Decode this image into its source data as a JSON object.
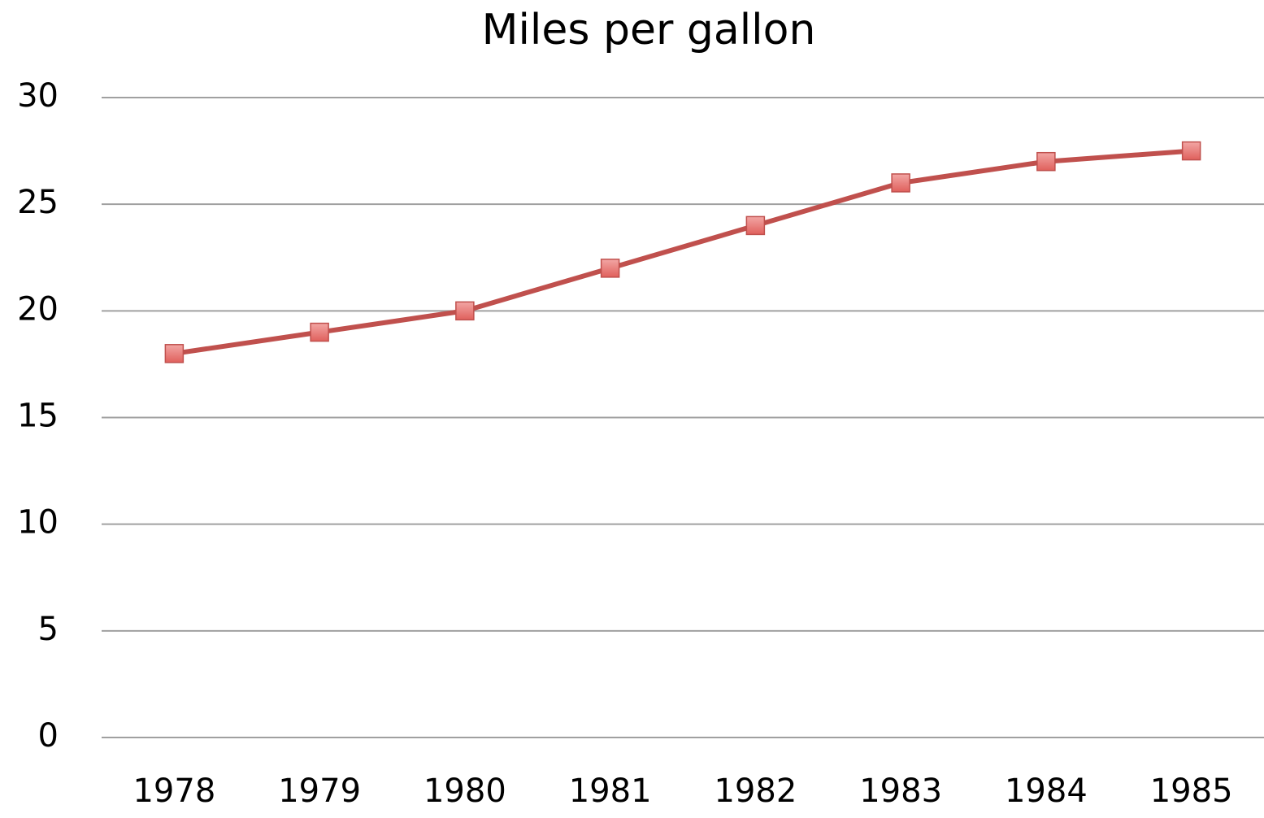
{
  "chart_data": {
    "type": "line",
    "title": "Miles per gallon",
    "categories": [
      "1978",
      "1979",
      "1980",
      "1981",
      "1982",
      "1983",
      "1984",
      "1985"
    ],
    "series": [
      {
        "name": "Miles per gallon",
        "color": "#c0504d",
        "values": [
          18,
          19,
          20,
          22,
          24,
          26,
          27,
          27.5
        ]
      }
    ],
    "ylim": [
      0,
      30
    ],
    "yticks": [
      0,
      5,
      10,
      15,
      20,
      25,
      30
    ],
    "grid": true
  }
}
